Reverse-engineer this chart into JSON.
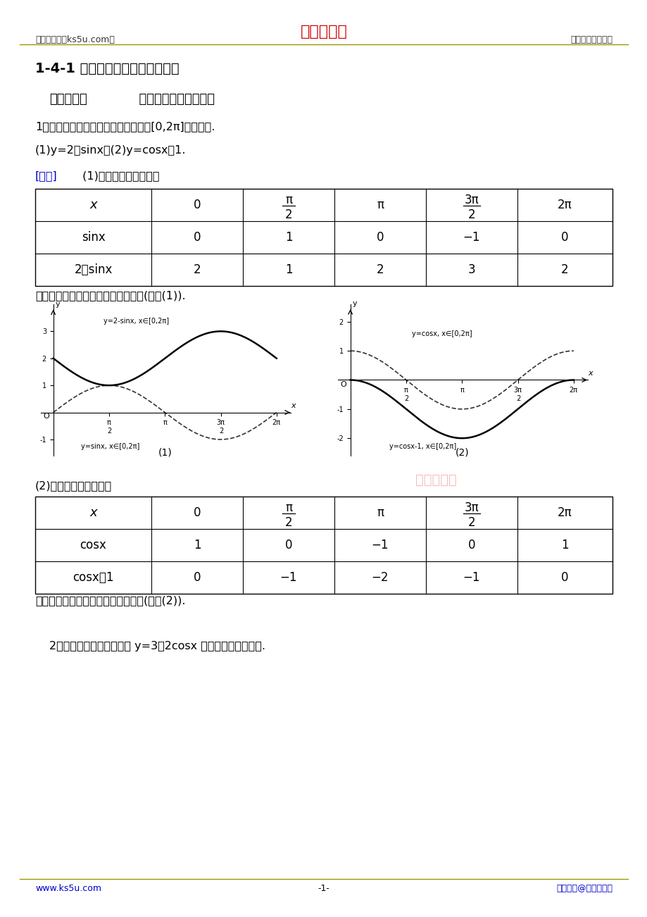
{
  "title": "1-4-1 正弦函数、余弦函数的图象",
  "header_left": "高考资源网（ks5u.com）",
  "header_center": "高考资源网",
  "header_right": "您身边的高考专家",
  "footer_left": "www.ks5u.com",
  "footer_center": "-1-",
  "footer_right": "版权所有@高考资源网",
  "bg_color": "#ffffff",
  "section1_title": "命题方向１  「五点法」画函数简图",
  "q1_text": "1、用「五点法」画出下列函数在区间[0,2π]上的简图.",
  "q1_sub": "(1)y=2－sinx；(2)y=cosx－1.",
  "jiex_label": "[解析]",
  "jiex_text": " (1)按五个关键点列表：",
  "table1_row1_label": "sinx",
  "table1_row1_vals": [
    "0",
    "1",
    "0",
    "−1",
    "0"
  ],
  "table1_row2_label": "2－sinx",
  "table1_row2_vals": [
    "2",
    "1",
    "2",
    "3",
    "2"
  ],
  "desc1": "描点并将它们用光滑的曲线连接起来(如图(1)).",
  "table2_text": "(2)按五个关键点列表：",
  "table2_row1_label": "cosx",
  "table2_row1_vals": [
    "1",
    "0",
    "−1",
    "0",
    "1"
  ],
  "table2_row2_label": "cosx－1",
  "table2_row2_vals": [
    "0",
    "−1",
    "−2",
    "−1",
    "0"
  ],
  "desc2": "描点并将它们用光滑的曲线连接起来(如图(2)).",
  "q2_text": "2、用「五点法」作出函数 y=3＋2cosx 在一个周期内的图象.",
  "watermark": "高考资源网"
}
